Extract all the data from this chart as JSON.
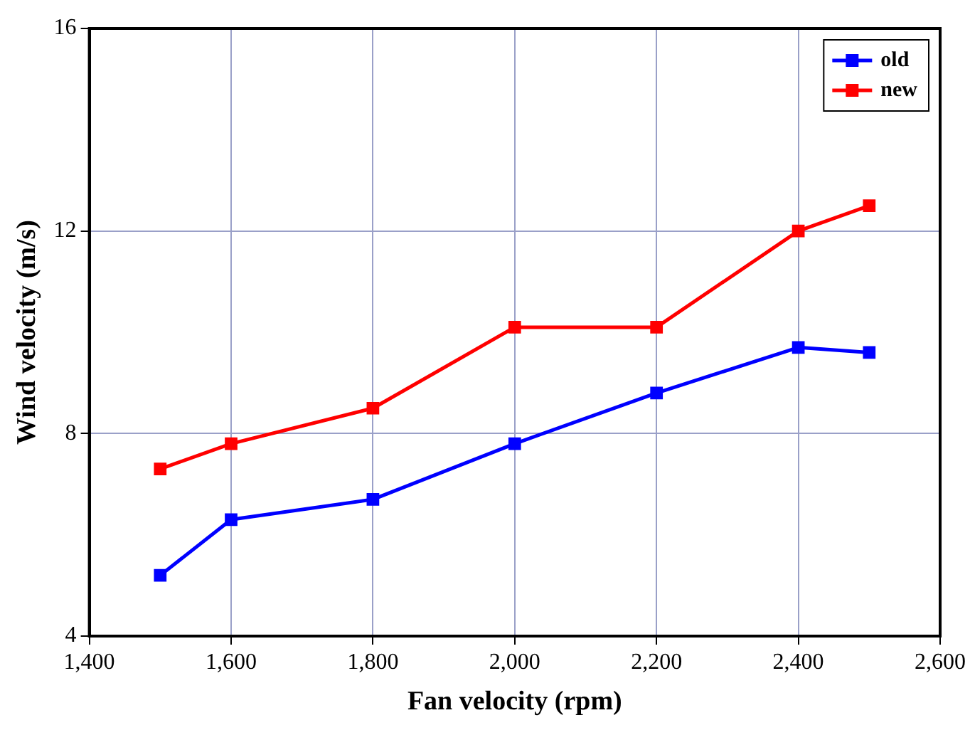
{
  "chart_data": {
    "type": "line",
    "xlabel": "Fan velocity (rpm)",
    "ylabel": "Wind velocity (m/s)",
    "x": [
      1500,
      1600,
      1800,
      2000,
      2200,
      2400,
      2500
    ],
    "series": [
      {
        "name": "old",
        "color": "#0000ff",
        "values": [
          5.2,
          6.3,
          6.7,
          7.8,
          8.8,
          9.7,
          9.6
        ]
      },
      {
        "name": "new",
        "color": "#ff0000",
        "values": [
          7.3,
          7.8,
          8.5,
          10.1,
          10.1,
          12.0,
          12.5
        ]
      }
    ],
    "xlim": [
      1400,
      2600
    ],
    "xticks": [
      {
        "value": 1400,
        "label": "1,400"
      },
      {
        "value": 1600,
        "label": "1,600"
      },
      {
        "value": 1800,
        "label": "1,800"
      },
      {
        "value": 2000,
        "label": "2,000"
      },
      {
        "value": 2200,
        "label": "2,200"
      },
      {
        "value": 2400,
        "label": "2,400"
      },
      {
        "value": 2600,
        "label": "2,600"
      }
    ],
    "ylim": [
      4,
      16
    ],
    "yticks": [
      4,
      8,
      12,
      16
    ],
    "grid": true,
    "legend": "top right",
    "marker": "square",
    "line_style": "solid"
  }
}
